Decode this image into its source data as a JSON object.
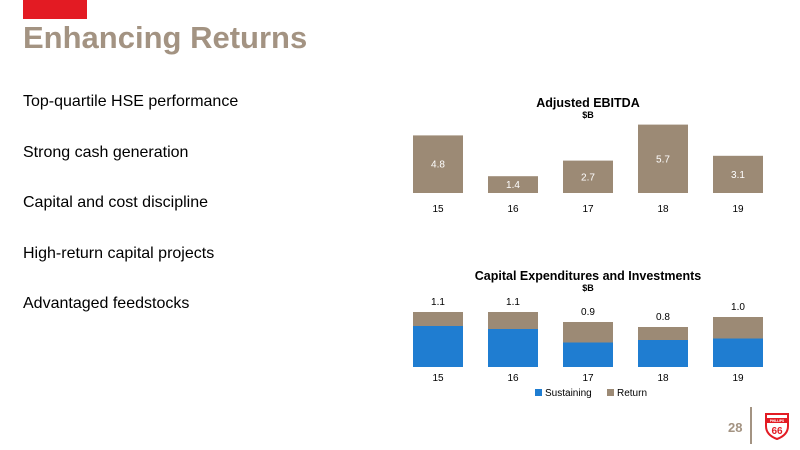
{
  "slide": {
    "title": "Enhancing Returns",
    "page_number": "28"
  },
  "bullets": [
    "Top-quartile HSE performance",
    "Strong cash generation",
    "Capital and cost discipline",
    "High-return capital projects",
    "Advantaged feedstocks"
  ],
  "colors": {
    "accent_red": "#e31b23",
    "title_tan": "#a39382",
    "bar_tan": "#9c8a75",
    "sustaining_blue": "#1f7dd1"
  },
  "logo": {
    "text_top": "PHILLIPS",
    "text_main": "66"
  },
  "chart_data": [
    {
      "type": "bar",
      "title": "Adjusted EBITDA",
      "subtitle": "$B",
      "categories": [
        "15",
        "16",
        "17",
        "18",
        "19"
      ],
      "values": [
        4.8,
        1.4,
        2.7,
        5.7,
        3.1
      ],
      "labels": [
        "4.8",
        "1.4",
        "2.7",
        "5.7",
        "3.1"
      ],
      "ylim": [
        0,
        6.0
      ],
      "grid": false
    },
    {
      "type": "bar",
      "stacked": true,
      "title": "Capital Expenditures and Investments",
      "subtitle": "$B",
      "categories": [
        "15",
        "16",
        "17",
        "18",
        "19"
      ],
      "series": [
        {
          "name": "Sustaining",
          "values": [
            0.82,
            0.76,
            0.49,
            0.54,
            0.57
          ]
        },
        {
          "name": "Return",
          "values": [
            0.28,
            0.34,
            0.41,
            0.26,
            0.43
          ]
        }
      ],
      "totals": [
        1.1,
        1.1,
        0.9,
        0.8,
        1.0
      ],
      "total_labels": [
        "1.1",
        "1.1",
        "0.9",
        "0.8",
        "1.0"
      ],
      "ylim": [
        0,
        1.6
      ],
      "legend": "bottom",
      "grid": false
    }
  ]
}
